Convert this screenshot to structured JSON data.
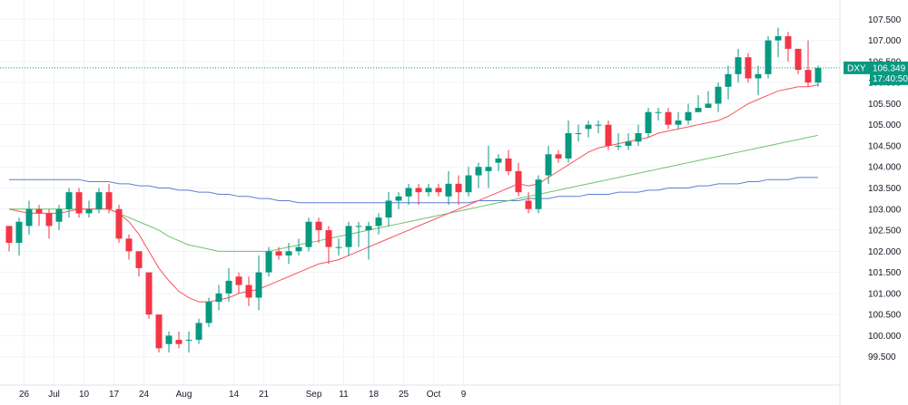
{
  "chart_data": {
    "type": "candlestick",
    "symbol": "DXY",
    "last_price": "106.349",
    "countdown": "17:40:50",
    "y_ticks": [
      "99.500",
      "100.000",
      "100.500",
      "101.000",
      "101.500",
      "102.000",
      "102.500",
      "103.000",
      "103.500",
      "104.000",
      "104.500",
      "105.000",
      "105.500",
      "106.000",
      "106.500",
      "107.000",
      "107.500"
    ],
    "ylim": [
      99.3,
      107.7
    ],
    "x_ticks": [
      {
        "label": "26",
        "i": 1.5
      },
      {
        "label": "Jul",
        "i": 4.5
      },
      {
        "label": "10",
        "i": 7.5
      },
      {
        "label": "17",
        "i": 10.5
      },
      {
        "label": "24",
        "i": 13.5
      },
      {
        "label": "Aug",
        "i": 17.5
      },
      {
        "label": "14",
        "i": 22.5
      },
      {
        "label": "21",
        "i": 25.5
      },
      {
        "label": "Sep",
        "i": 30.5
      },
      {
        "label": "11",
        "i": 33.5
      },
      {
        "label": "18",
        "i": 36.5
      },
      {
        "label": "25",
        "i": 39.5
      },
      {
        "label": "Oct",
        "i": 42.5
      },
      {
        "label": "9",
        "i": 45.5
      }
    ],
    "candles": [
      [
        102.6,
        102.2,
        102.6,
        102.0
      ],
      [
        102.2,
        102.7,
        102.8,
        101.9
      ],
      [
        102.6,
        103.0,
        103.2,
        102.4
      ],
      [
        103.0,
        102.9,
        103.1,
        102.6
      ],
      [
        102.9,
        102.6,
        103.0,
        102.3
      ],
      [
        102.7,
        103.0,
        103.1,
        102.5
      ],
      [
        103.0,
        103.4,
        103.5,
        102.8
      ],
      [
        103.4,
        102.9,
        103.5,
        102.8
      ],
      [
        102.9,
        103.0,
        103.2,
        102.8
      ],
      [
        103.0,
        103.4,
        103.5,
        102.9
      ],
      [
        103.4,
        103.0,
        103.6,
        102.9
      ],
      [
        103.0,
        102.3,
        103.1,
        102.2
      ],
      [
        102.3,
        102.0,
        102.4,
        101.8
      ],
      [
        102.0,
        101.6,
        102.0,
        101.4
      ],
      [
        101.5,
        100.5,
        101.5,
        100.4
      ],
      [
        100.5,
        99.7,
        100.5,
        99.6
      ],
      [
        99.8,
        100.0,
        100.1,
        99.6
      ],
      [
        99.9,
        99.8,
        100.1,
        99.7
      ],
      [
        99.9,
        99.9,
        100.1,
        99.6
      ],
      [
        99.9,
        100.3,
        100.4,
        99.8
      ],
      [
        100.3,
        100.8,
        100.9,
        100.2
      ],
      [
        100.8,
        101.0,
        101.2,
        100.6
      ],
      [
        101.0,
        101.3,
        101.6,
        100.8
      ],
      [
        101.4,
        101.2,
        101.5,
        101.0
      ],
      [
        101.2,
        100.9,
        101.4,
        100.7
      ],
      [
        100.9,
        101.5,
        101.9,
        100.6
      ],
      [
        101.5,
        102.0,
        102.1,
        101.4
      ],
      [
        102.0,
        101.9,
        102.1,
        101.8
      ],
      [
        101.9,
        102.0,
        102.2,
        101.7
      ],
      [
        102.0,
        102.1,
        102.3,
        101.9
      ],
      [
        102.1,
        102.7,
        102.8,
        102.0
      ],
      [
        102.7,
        102.5,
        102.8,
        102.2
      ],
      [
        102.5,
        102.1,
        102.6,
        101.7
      ],
      [
        102.1,
        102.1,
        102.3,
        101.9
      ],
      [
        102.1,
        102.6,
        102.7,
        101.9
      ],
      [
        102.6,
        102.6,
        102.7,
        102.1
      ],
      [
        102.5,
        102.6,
        102.7,
        101.8
      ],
      [
        102.6,
        102.8,
        102.9,
        102.4
      ],
      [
        102.8,
        103.2,
        103.4,
        102.6
      ],
      [
        103.2,
        103.3,
        103.4,
        103.0
      ],
      [
        103.3,
        103.5,
        103.6,
        103.1
      ],
      [
        103.5,
        103.4,
        103.6,
        103.1
      ],
      [
        103.4,
        103.5,
        103.6,
        103.3
      ],
      [
        103.5,
        103.4,
        103.6,
        103.3
      ],
      [
        103.3,
        103.6,
        103.9,
        103.1
      ],
      [
        103.6,
        103.4,
        103.8,
        103.1
      ],
      [
        103.4,
        103.8,
        104.0,
        103.3
      ],
      [
        103.8,
        104.0,
        104.1,
        103.5
      ],
      [
        103.9,
        104.0,
        104.5,
        103.5
      ],
      [
        104.1,
        104.2,
        104.3,
        103.9
      ],
      [
        104.2,
        103.9,
        104.4,
        103.8
      ],
      [
        103.9,
        103.4,
        104.1,
        103.3
      ],
      [
        103.2,
        103.0,
        103.4,
        102.9
      ],
      [
        103.0,
        103.7,
        103.8,
        102.9
      ],
      [
        103.8,
        104.3,
        104.5,
        103.6
      ],
      [
        104.3,
        104.2,
        104.4,
        104.1
      ],
      [
        104.2,
        104.8,
        105.1,
        104.1
      ],
      [
        104.8,
        104.8,
        105.0,
        104.6
      ],
      [
        104.9,
        105.0,
        105.1,
        104.7
      ],
      [
        105.0,
        105.0,
        105.1,
        104.8
      ],
      [
        105.0,
        104.5,
        105.1,
        104.4
      ],
      [
        104.5,
        104.5,
        104.8,
        104.4
      ],
      [
        104.5,
        104.6,
        104.8,
        104.4
      ],
      [
        104.6,
        104.8,
        105.0,
        104.5
      ],
      [
        104.8,
        105.3,
        105.4,
        104.7
      ],
      [
        105.3,
        105.3,
        105.4,
        105.1
      ],
      [
        105.3,
        105.0,
        105.4,
        104.9
      ],
      [
        105.0,
        105.1,
        105.3,
        104.9
      ],
      [
        105.1,
        105.3,
        105.5,
        105.0
      ],
      [
        105.3,
        105.4,
        105.7,
        105.3
      ],
      [
        105.4,
        105.5,
        105.8,
        105.4
      ],
      [
        105.5,
        105.9,
        106.0,
        105.3
      ],
      [
        105.9,
        106.2,
        106.4,
        105.6
      ],
      [
        106.2,
        106.6,
        106.8,
        106.0
      ],
      [
        106.6,
        106.1,
        106.7,
        106.0
      ],
      [
        106.1,
        106.2,
        106.4,
        105.7
      ],
      [
        106.2,
        107.0,
        107.1,
        106.1
      ],
      [
        107.0,
        107.1,
        107.3,
        106.6
      ],
      [
        107.1,
        106.8,
        107.2,
        106.5
      ],
      [
        106.8,
        106.3,
        106.8,
        106.2
      ],
      [
        106.3,
        106.0,
        107.0,
        105.9
      ],
      [
        106.0,
        106.349,
        106.4,
        105.9
      ]
    ],
    "ma_fast": [
      103.0,
      102.95,
      102.9,
      102.9,
      102.9,
      102.9,
      102.95,
      103.0,
      103.0,
      103.0,
      103.0,
      102.9,
      102.7,
      102.4,
      102.0,
      101.6,
      101.3,
      101.05,
      100.9,
      100.8,
      100.8,
      100.85,
      100.9,
      101.0,
      101.05,
      101.1,
      101.2,
      101.3,
      101.4,
      101.5,
      101.6,
      101.7,
      101.75,
      101.8,
      101.9,
      102.0,
      102.1,
      102.2,
      102.3,
      102.4,
      102.5,
      102.6,
      102.7,
      102.8,
      102.9,
      103.0,
      103.1,
      103.2,
      103.3,
      103.4,
      103.5,
      103.6,
      103.55,
      103.6,
      103.75,
      103.9,
      104.05,
      104.2,
      104.35,
      104.45,
      104.5,
      104.55,
      104.6,
      104.65,
      104.7,
      104.8,
      104.85,
      104.9,
      104.95,
      105.0,
      105.05,
      105.1,
      105.2,
      105.35,
      105.5,
      105.6,
      105.7,
      105.8,
      105.85,
      105.9,
      105.9,
      105.95
    ],
    "ma_mid": [
      103.0,
      103.0,
      103.0,
      103.0,
      103.0,
      103.0,
      103.0,
      103.0,
      103.0,
      103.0,
      103.0,
      102.9,
      102.8,
      102.7,
      102.6,
      102.5,
      102.35,
      102.25,
      102.15,
      102.1,
      102.05,
      102.0,
      102.0,
      102.0,
      102.0,
      102.0,
      102.0,
      102.05,
      102.1,
      102.15,
      102.2,
      102.25,
      102.3,
      102.35,
      102.4,
      102.45,
      102.5,
      102.55,
      102.6,
      102.65,
      102.7,
      102.75,
      102.8,
      102.85,
      102.9,
      102.95,
      103.0,
      103.05,
      103.1,
      103.15,
      103.2,
      103.25,
      103.3,
      103.35,
      103.4,
      103.45,
      103.5,
      103.55,
      103.6,
      103.65,
      103.7,
      103.75,
      103.8,
      103.85,
      103.9,
      103.95,
      104.0,
      104.05,
      104.1,
      104.15,
      104.2,
      104.25,
      104.3,
      104.35,
      104.4,
      104.45,
      104.5,
      104.55,
      104.6,
      104.65,
      104.7,
      104.75
    ],
    "ma_slow": [
      103.7,
      103.7,
      103.7,
      103.7,
      103.7,
      103.7,
      103.7,
      103.7,
      103.65,
      103.65,
      103.65,
      103.6,
      103.6,
      103.55,
      103.55,
      103.5,
      103.5,
      103.45,
      103.45,
      103.4,
      103.4,
      103.35,
      103.35,
      103.3,
      103.3,
      103.25,
      103.25,
      103.2,
      103.2,
      103.15,
      103.15,
      103.15,
      103.15,
      103.15,
      103.15,
      103.15,
      103.15,
      103.15,
      103.15,
      103.15,
      103.15,
      103.15,
      103.15,
      103.15,
      103.15,
      103.15,
      103.15,
      103.2,
      103.2,
      103.2,
      103.2,
      103.2,
      103.25,
      103.25,
      103.25,
      103.3,
      103.3,
      103.3,
      103.35,
      103.35,
      103.35,
      103.4,
      103.4,
      103.4,
      103.45,
      103.45,
      103.5,
      103.5,
      103.5,
      103.55,
      103.55,
      103.6,
      103.6,
      103.6,
      103.65,
      103.65,
      103.7,
      103.7,
      103.7,
      103.75,
      103.75,
      103.75
    ],
    "colors": {
      "up": "#089981",
      "down": "#f23645",
      "ma_fast": "#f7525f",
      "ma_mid": "#6cc26c",
      "ma_slow": "#5b7fd1",
      "last_line": "#089981",
      "grid": "#f0f3fa",
      "axis": "#e0e3eb"
    }
  }
}
